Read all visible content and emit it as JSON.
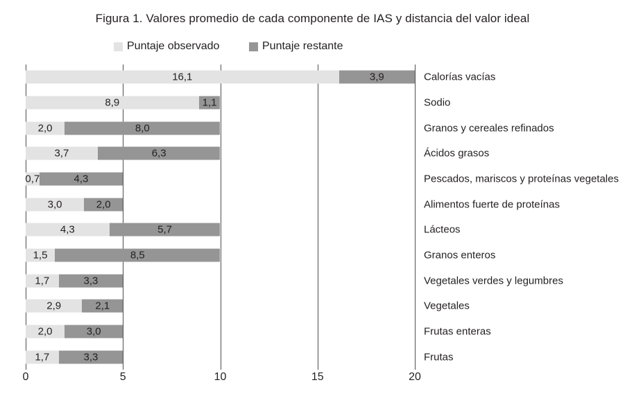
{
  "title": "Figura 1. Valores promedio de cada componente de IAS y distancia del valor ideal",
  "legend": [
    {
      "label": "Puntaje observado",
      "color": "#e3e3e3"
    },
    {
      "label": "Puntaje restante",
      "color": "#959595"
    }
  ],
  "colors": {
    "observed": "#e3e3e3",
    "remaining": "#959595",
    "gridline": "#4d4d4d",
    "text": "#231f20"
  },
  "chart_data": {
    "type": "bar",
    "orientation": "horizontal",
    "stacked": true,
    "title": "Figura 1. Valores promedio de cada componente de IAS y distancia del valor ideal",
    "categories": [
      "Calorías vacías",
      "Sodio",
      "Granos y cereales refinados",
      "Ácidos grasos",
      "Pescados, mariscos y proteínas vegetales",
      "Alimentos fuerte de proteínas",
      "Lácteos",
      "Granos enteros",
      "Vegetales verdes y legumbres",
      "Vegetales",
      "Frutas enteras",
      "Frutas"
    ],
    "series": [
      {
        "name": "Puntaje observado",
        "color": "#e3e3e3",
        "values": [
          16.1,
          8.9,
          2.0,
          3.7,
          0.7,
          3.0,
          4.3,
          1.5,
          1.7,
          2.9,
          2.0,
          1.7
        ]
      },
      {
        "name": "Puntaje restante",
        "color": "#959595",
        "values": [
          3.9,
          1.1,
          8.0,
          6.3,
          4.3,
          2.0,
          5.7,
          8.5,
          3.3,
          2.1,
          3.0,
          3.3
        ]
      }
    ],
    "decimal_separator": ",",
    "x_ticks": [
      "0",
      "5",
      "10",
      "15",
      "20"
    ],
    "xlim": [
      0,
      20
    ],
    "xlabel": "",
    "ylabel": "",
    "grid": true,
    "legend_position": "top-left"
  }
}
